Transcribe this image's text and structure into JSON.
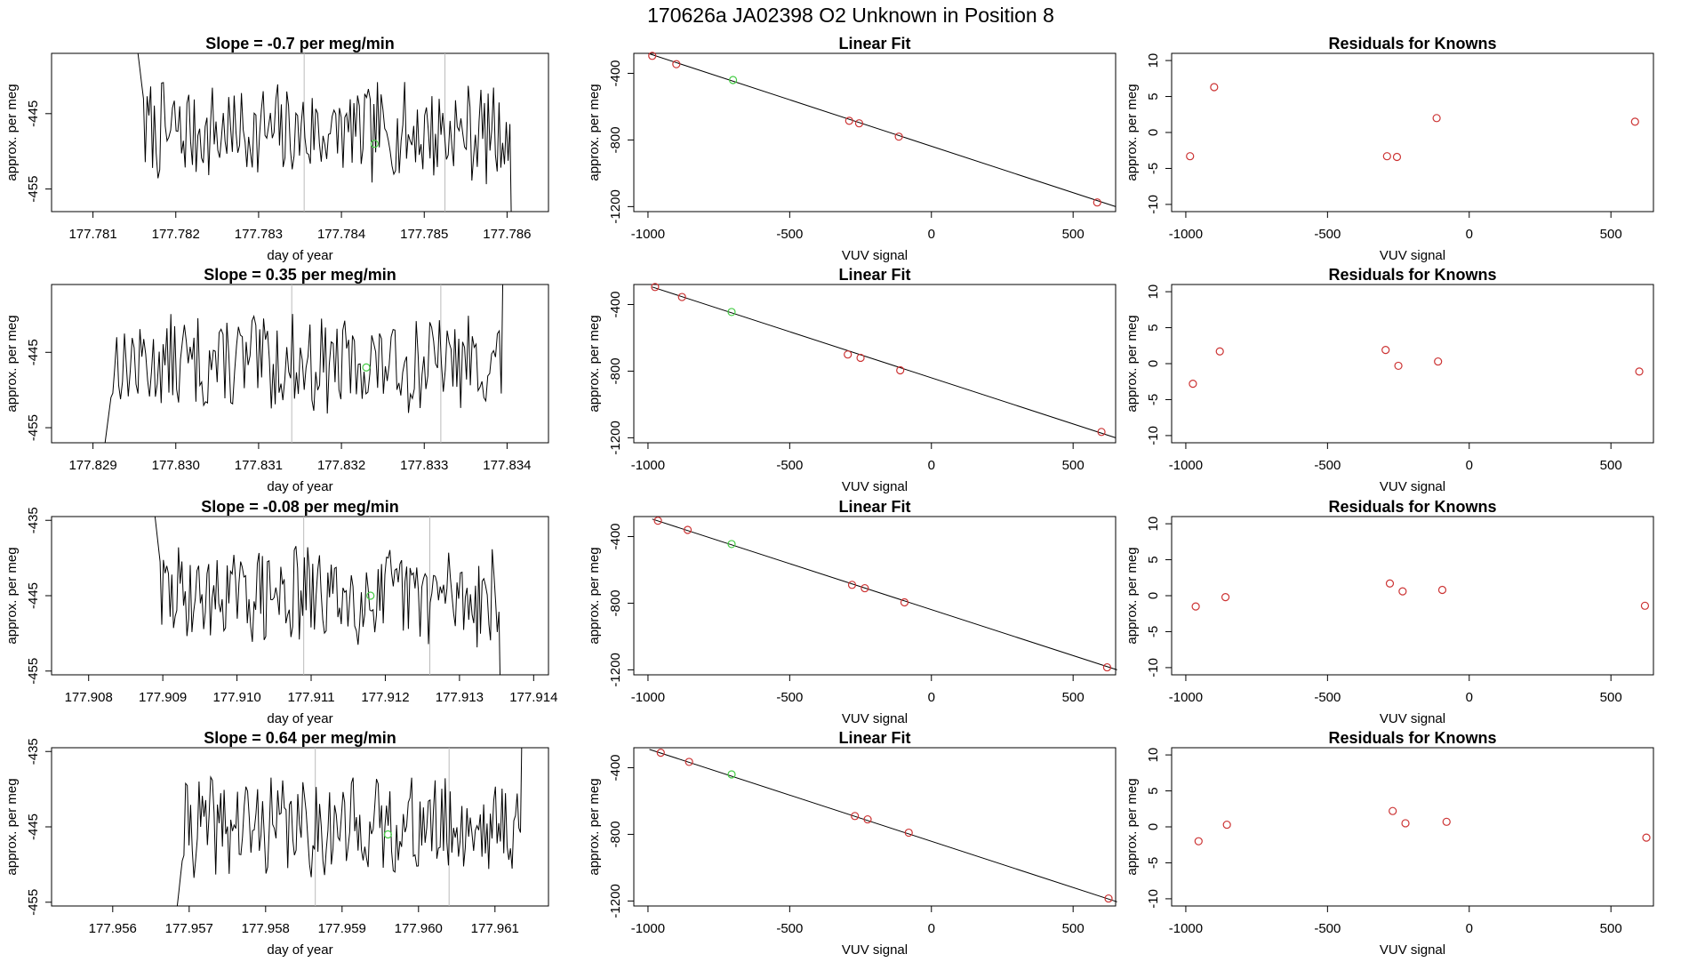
{
  "title": "170626a      JA02398    O2 Unknown in Position  8",
  "colors": {
    "line": "#000000",
    "unknown_point": "#44cc44",
    "known_point": "#cc3333",
    "event_line": "#bbbbbb"
  },
  "rows": [
    {
      "timeseries": {
        "title": "Slope =  -0.7  per meg/min",
        "xlabel": "day of year",
        "ylabel": "approx. per meg",
        "xlim": [
          177.7805,
          177.7865
        ],
        "ylim": [
          -458,
          -437
        ],
        "xticks": [
          "177.781",
          "177.782",
          "177.783",
          "177.784",
          "177.785",
          "177.786"
        ],
        "yticks": [
          "-445",
          "-455"
        ],
        "series_start": 177.7815,
        "series_end": 177.7861,
        "markers": [
          177.78355,
          177.78525
        ],
        "green": {
          "x": 177.7844,
          "y": -449
        },
        "trace_seed": 7
      },
      "fit": {
        "title": "Linear Fit",
        "xlabel": "VUV signal",
        "ylabel": "approx. per meg",
        "xlim": [
          -1050,
          650
        ],
        "ylim": [
          -1230,
          -280
        ],
        "xticks": [
          "-1000",
          "-500",
          "0",
          "500"
        ],
        "yticks": [
          "-400",
          "-800",
          "-1200"
        ],
        "line": {
          "x": [
            -1000,
            650
          ],
          "y": [
            -280,
            -1200
          ]
        },
        "knowns": {
          "x": [
            -985,
            -900,
            -290,
            -255,
            -115,
            585
          ],
          "y": [
            -295,
            -345,
            -685,
            -700,
            -780,
            -1175
          ]
        },
        "unknown": {
          "x": -700,
          "y": -440
        }
      },
      "residuals": {
        "title": "Residuals for Knowns",
        "xlabel": "VUV signal",
        "ylabel": "approx. per meg",
        "xlim": [
          -1050,
          650
        ],
        "ylim": [
          -11,
          11
        ],
        "xticks": [
          "-1000",
          "-500",
          "0",
          "500"
        ],
        "yticks": [
          "10",
          "5",
          "0",
          "-5",
          "-10"
        ],
        "x": [
          -985,
          -900,
          -290,
          -255,
          -115,
          585
        ],
        "y": [
          -3.3,
          6.3,
          -3.3,
          -3.4,
          2.0,
          1.5
        ]
      }
    },
    {
      "timeseries": {
        "title": "Slope =  0.35  per meg/min",
        "xlabel": "day of year",
        "ylabel": "approx. per meg",
        "xlim": [
          177.8285,
          177.8345
        ],
        "ylim": [
          -457,
          -436
        ],
        "xticks": [
          "177.829",
          "177.830",
          "177.831",
          "177.832",
          "177.833",
          "177.834"
        ],
        "yticks": [
          "-445",
          "-455"
        ],
        "series_start": 177.8291,
        "series_end": 177.834,
        "markers": [
          177.8314,
          177.8332
        ],
        "green": {
          "x": 177.8323,
          "y": -447
        },
        "trace_seed": 13
      },
      "fit": {
        "title": "Linear Fit",
        "xlabel": "VUV signal",
        "ylabel": "approx. per meg",
        "xlim": [
          -1050,
          650
        ],
        "ylim": [
          -1230,
          -280
        ],
        "xticks": [
          "-1000",
          "-500",
          "0",
          "500"
        ],
        "yticks": [
          "-400",
          "-800",
          "-1200"
        ],
        "line": {
          "x": [
            -985,
            650
          ],
          "y": [
            -295,
            -1200
          ]
        },
        "knowns": {
          "x": [
            -975,
            -880,
            -295,
            -250,
            -110,
            600
          ],
          "y": [
            -295,
            -355,
            -700,
            -720,
            -795,
            -1165
          ]
        },
        "unknown": {
          "x": -705,
          "y": -445
        }
      },
      "residuals": {
        "title": "Residuals for Knowns",
        "xlabel": "VUV signal",
        "ylabel": "approx. per meg",
        "xlim": [
          -1050,
          650
        ],
        "ylim": [
          -11,
          11
        ],
        "xticks": [
          "-1000",
          "-500",
          "0",
          "500"
        ],
        "yticks": [
          "10",
          "5",
          "0",
          "-5",
          "-10"
        ],
        "x": [
          -975,
          -880,
          -295,
          -250,
          -110,
          600
        ],
        "y": [
          -2.8,
          1.7,
          1.9,
          -0.3,
          0.3,
          -1.1
        ]
      }
    },
    {
      "timeseries": {
        "title": "Slope =  -0.08  per meg/min",
        "xlabel": "day of year",
        "ylabel": "approx. per meg",
        "xlim": [
          177.9075,
          177.9142
        ],
        "ylim": [
          -455.5,
          -434.5
        ],
        "xticks": [
          "177.908",
          "177.909",
          "177.910",
          "177.911",
          "177.912",
          "177.913",
          "177.914"
        ],
        "yticks": [
          "-435",
          "-445",
          "-455"
        ],
        "series_start": 177.90885,
        "series_end": 177.9136,
        "markers": [
          177.9109,
          177.9126
        ],
        "green": {
          "x": 177.9118,
          "y": -445
        },
        "trace_seed": 29
      },
      "fit": {
        "title": "Linear Fit",
        "xlabel": "VUV signal",
        "ylabel": "approx. per meg",
        "xlim": [
          -1050,
          650
        ],
        "ylim": [
          -1230,
          -280
        ],
        "xticks": [
          "-1000",
          "-500",
          "0",
          "500"
        ],
        "yticks": [
          "-400",
          "-800",
          "-1200"
        ],
        "line": {
          "x": [
            -985,
            655
          ],
          "y": [
            -295,
            -1200
          ]
        },
        "knowns": {
          "x": [
            -965,
            -860,
            -280,
            -235,
            -95,
            620
          ],
          "y": [
            -305,
            -360,
            -690,
            -710,
            -795,
            -1185
          ]
        },
        "unknown": {
          "x": -705,
          "y": -445
        }
      },
      "residuals": {
        "title": "Residuals for Knowns",
        "xlabel": "VUV signal",
        "ylabel": "approx. per meg",
        "xlim": [
          -1050,
          650
        ],
        "ylim": [
          -11,
          11
        ],
        "xticks": [
          "-1000",
          "-500",
          "0",
          "500"
        ],
        "yticks": [
          "10",
          "5",
          "0",
          "-5",
          "-10"
        ],
        "x": [
          -965,
          -860,
          -280,
          -235,
          -95,
          620
        ],
        "y": [
          -1.5,
          -0.2,
          1.7,
          0.6,
          0.8,
          -1.4
        ]
      }
    },
    {
      "timeseries": {
        "title": "Slope =  0.64  per meg/min",
        "xlabel": "day of year",
        "ylabel": "approx. per meg",
        "xlim": [
          177.9552,
          177.9617
        ],
        "ylim": [
          -455.5,
          -434.5
        ],
        "xticks": [
          "177.956",
          "177.957",
          "177.958",
          "177.959",
          "177.960",
          "177.961"
        ],
        "yticks": [
          "-435",
          "-445",
          "-455"
        ],
        "series_start": 177.9568,
        "series_end": 177.9614,
        "markers": [
          177.95865,
          177.9604
        ],
        "green": {
          "x": 177.9596,
          "y": -446
        },
        "trace_seed": 41
      },
      "fit": {
        "title": "Linear Fit",
        "xlabel": "VUV signal",
        "ylabel": "approx. per meg",
        "xlim": [
          -1050,
          650
        ],
        "ylim": [
          -1230,
          -280
        ],
        "xticks": [
          "-1000",
          "-500",
          "0",
          "500"
        ],
        "yticks": [
          "-400",
          "-800",
          "-1200"
        ],
        "line": {
          "x": [
            -995,
            655
          ],
          "y": [
            -290,
            -1205
          ]
        },
        "knowns": {
          "x": [
            -955,
            -855,
            -270,
            -225,
            -80,
            625
          ],
          "y": [
            -310,
            -365,
            -690,
            -710,
            -790,
            -1185
          ]
        },
        "unknown": {
          "x": -705,
          "y": -440
        }
      },
      "residuals": {
        "title": "Residuals for Knowns",
        "xlabel": "VUV signal",
        "ylabel": "approx. per meg",
        "xlim": [
          -1050,
          650
        ],
        "ylim": [
          -11,
          11
        ],
        "xticks": [
          "-1000",
          "-500",
          "0",
          "500"
        ],
        "yticks": [
          "10",
          "5",
          "0",
          "-5",
          "-10"
        ],
        "x": [
          -955,
          -855,
          -270,
          -225,
          -80,
          625
        ],
        "y": [
          -2.0,
          0.3,
          2.2,
          0.5,
          0.7,
          -1.5
        ]
      }
    }
  ]
}
